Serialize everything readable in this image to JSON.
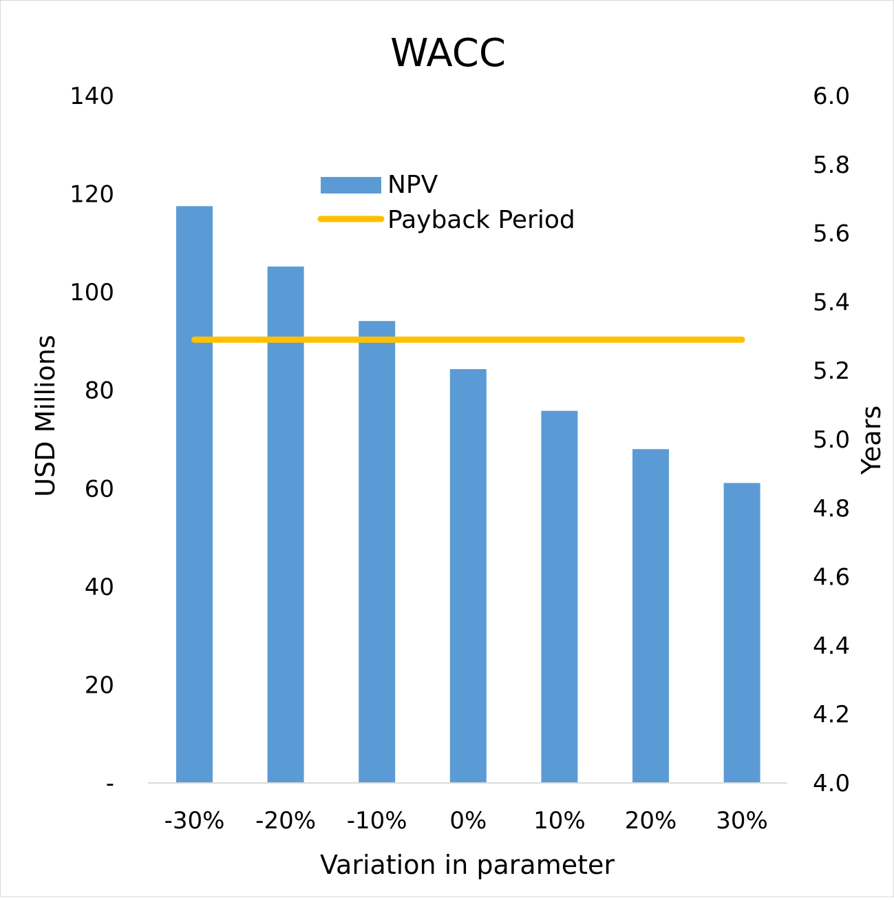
{
  "chart_data": {
    "type": "bar",
    "title": "WACC",
    "xlabel": "Variation in parameter",
    "ylabel": "USD Millions",
    "y2label": "Years",
    "categories": [
      "-30%",
      "-20%",
      "-10%",
      "0%",
      "10%",
      "20%",
      "30%"
    ],
    "ylim": [
      0,
      140
    ],
    "y2lim": [
      4.0,
      6.0
    ],
    "y_ticks": [
      "-",
      "20",
      "40",
      "60",
      "80",
      "100",
      "120",
      "140"
    ],
    "y2_ticks": [
      "4.0",
      "4.2",
      "4.4",
      "4.6",
      "4.8",
      "5.0",
      "5.2",
      "5.4",
      "5.6",
      "5.8",
      "6.0"
    ],
    "series": [
      {
        "name": "NPV",
        "type": "bar",
        "axis": "left",
        "color": "#5b9bd5",
        "values": [
          117.5,
          105.2,
          94.1,
          84.3,
          75.8,
          68.0,
          61.1
        ]
      },
      {
        "name": "Payback Period",
        "type": "line",
        "axis": "right",
        "color": "#ffc000",
        "values": [
          5.29,
          5.29,
          5.29,
          5.29,
          5.29,
          5.29,
          5.29
        ]
      }
    ],
    "legend_position": "top-center",
    "grid": false
  }
}
